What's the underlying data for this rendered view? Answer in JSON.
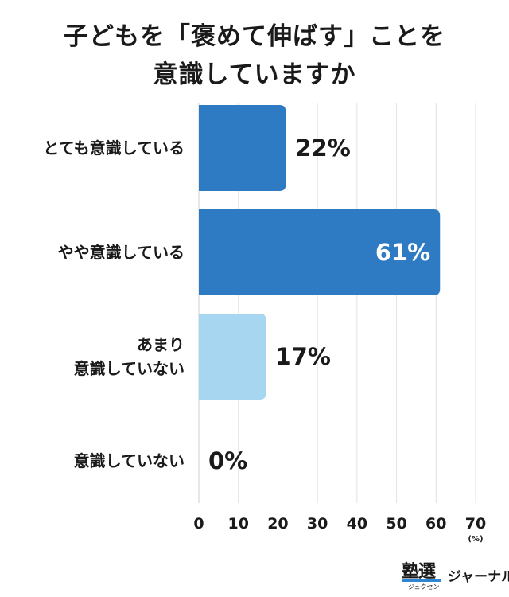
{
  "title_lines": [
    "子どもを「褒めて伸ばす」ことを",
    "意識していますか"
  ],
  "chart_data": {
    "type": "bar",
    "orientation": "horizontal",
    "categories": [
      [
        "とても意識している"
      ],
      [
        "やや意識している"
      ],
      [
        "あまり",
        "意識していない"
      ],
      [
        "意識していない"
      ]
    ],
    "values": [
      22,
      61,
      17,
      0
    ],
    "value_labels": [
      "22%",
      "61%",
      "17%",
      "0%"
    ],
    "colors": [
      "#2e7bc4",
      "#2e7bc4",
      "#a7d7f0",
      "#a7d7f0"
    ],
    "xlim": [
      0,
      70
    ],
    "xticks": [
      0,
      10,
      20,
      30,
      40,
      50,
      60,
      70
    ],
    "x_unit": "(%)",
    "grid": true
  },
  "logo": {
    "main": "塾選",
    "kana": "ジャーナル",
    "sub": "ジュクセン"
  }
}
